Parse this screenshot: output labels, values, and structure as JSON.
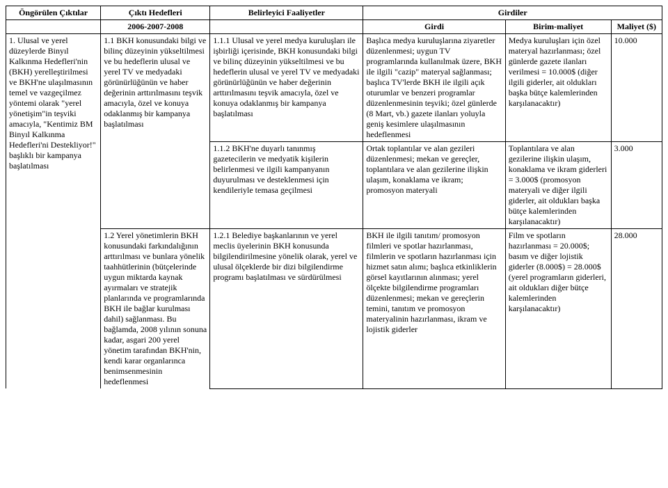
{
  "header": {
    "col1": "Öngörülen Çıktılar",
    "col2": "Çıktı Hedefleri",
    "col3": "Belirleyici Faaliyetler",
    "col4": "Girdiler"
  },
  "subheader": {
    "col2": "2006-2007-2008",
    "col4": "Girdi",
    "col5": "Birim-maliyet",
    "col6": "Maliyet ($)"
  },
  "rows": {
    "r1": {
      "outputs": "1.   Ulusal ve yerel düzeylerde Binyıl Kalkınma Hedefleri'nin (BKH) yerelleştirilmesi ve BKH'ne ulaşılmasının temel ve vazgeçilmez yöntemi olarak \"yerel yönetişim\"in teşviki amacıyla, \"Kentimiz BM Binyıl Kalkınma Hedefleri'ni Destekliyor!\" başlıklı bir kampanya başlatılması",
      "targets": "1.1   BKH konusundaki bilgi ve bilinç düzeyinin yükseltilmesi ve bu hedeflerin ulusal ve yerel TV ve medyadaki görünürlüğünün ve haber değerinin arttırılmasını teşvik amacıyla, özel ve konuya odaklanmış bir kampanya başlatılması",
      "activities": "1.1.1   Ulusal ve yerel medya kuruluşları ile işbirliği içerisinde, BKH konusundaki bilgi ve bilinç düzeyinin yükseltilmesi ve bu hedeflerin ulusal ve yerel TV ve medyadaki görünürlüğünün ve haber değerinin arttırılmasını teşvik amacıyla, özel ve konuya odaklanmış bir kampanya başlatılması",
      "inputs": "Başlıca medya kuruluşlarına ziyaretler düzenlenmesi; uygun TV programlarında kullanılmak üzere, BKH ile ilgili \"cazip\" materyal sağlanması; başlıca TV'lerde BKH ile ilgili açık oturumlar ve benzeri programlar düzenlenmesinin teşviki; özel günlerde (8 Mart, vb.) gazete ilanları yoluyla geniş kesimlere ulaşılmasının hedeflenmesi",
      "unitcost": "Medya kuruluşları için özel materyal hazırlanması; özel günlerde gazete ilanları verilmesi = 10.000$ (diğer ilgili giderler, ait oldukları başka bütçe kalemlerinden karşılanacaktır)",
      "cost": "10.000"
    },
    "r2": {
      "activities": "1.1.2   BKH'ne duyarlı tanınmış gazetecilerin ve medyatik kişilerin belirlenmesi ve ilgili kampanyanın duyurulması ve desteklenmesi için kendileriyle temasa geçilmesi",
      "inputs": "Ortak toplantılar ve alan gezileri düzenlenmesi; mekan ve gereçler, toplantılara ve alan gezilerine ilişkin ulaşım, konaklama ve ikram; promosyon materyali",
      "unitcost": "Toplantılara ve alan gezilerine ilişkin ulaşım, konaklama ve ikram giderleri = 3.000$ (promosyon materyali ve diğer ilgili giderler, ait oldukları başka bütçe kalemlerinden karşılanacaktır)",
      "cost": "3.000"
    },
    "r3": {
      "targets": "1.2   Yerel yönetimlerin BKH konusundaki farkındalığının arttırılması ve bunlara yönelik taahhütlerinin (bütçelerinde uygun miktarda kaynak ayırmaları ve stratejik planlarında ve programlarında BKH ile bağlar kurulması dahil) sağlanması. Bu bağlamda, 2008 yılının sonuna kadar, asgari 200 yerel yönetim tarafından BKH'nin, kendi karar organlarınca benimsenmesinin hedeflenmesi",
      "activities": "1.2.1   Belediye başkanlarının ve yerel meclis üyelerinin BKH konusunda bilgilendirilmesine yönelik olarak, yerel ve ulusal ölçeklerde bir dizi bilgilendirme programı başlatılması ve sürdürülmesi",
      "inputs": "BKH ile ilgili tanıtım/ promosyon filmleri ve spotlar hazırlanması, filmlerin ve spotların hazırlanması için hizmet satın alımı; başlıca etkinliklerin görsel kayıtlarının alınması; yerel ölçekte bilgilendirme programları düzenlenmesi; mekan ve gereçlerin temini, tanıtım ve promosyon materyalinin hazırlanması, ikram ve lojistik giderler",
      "unitcost": "Film ve spotların hazırlanması = 20.000$; basım ve diğer lojistik giderler (8.000$) = 28.000$ (yerel programların giderleri, ait oldukları diğer bütçe kalemlerinden karşılanacaktır)",
      "cost": "28.000"
    }
  }
}
